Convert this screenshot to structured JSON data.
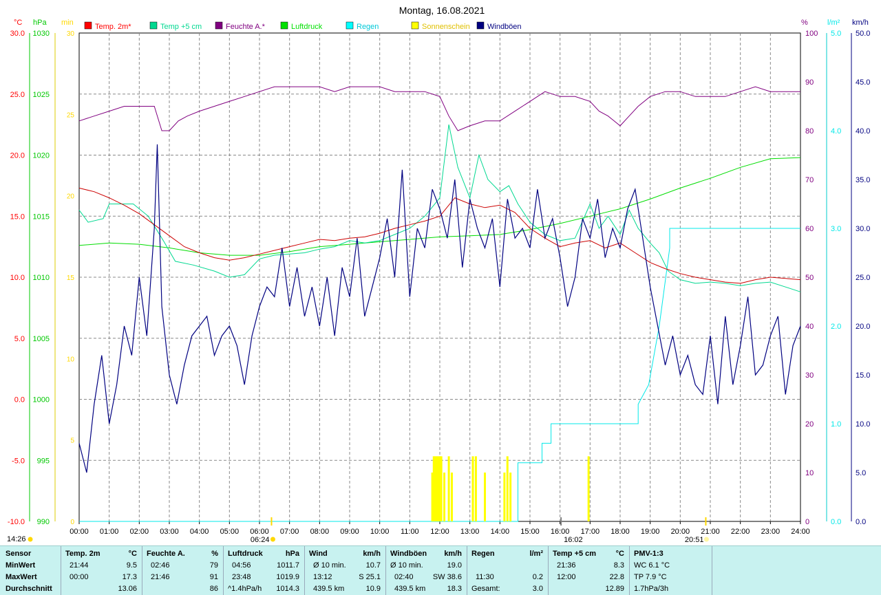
{
  "chart_data": {
    "type": "line",
    "title": "Montag, 16.08.2021",
    "x_ticks": [
      "00:00",
      "01:00",
      "02:00",
      "03:00",
      "04:00",
      "05:00",
      "06:00",
      "07:00",
      "08:00",
      "09:00",
      "10:00",
      "11:00",
      "12:00",
      "13:00",
      "14:00",
      "15:00",
      "16:00",
      "17:00",
      "18:00",
      "19:00",
      "20:00",
      "21:00",
      "22:00",
      "23:00",
      "24:00"
    ],
    "x_range_hours": [
      0,
      24
    ],
    "grid": "dashed",
    "legend_position": "top",
    "axes": {
      "temp_c": {
        "unit": "°C",
        "range": [
          -10,
          30
        ],
        "ticks": [
          "-10.0",
          "-5.0",
          "0.0",
          "5.0",
          "10.0",
          "15.0",
          "20.0",
          "25.0",
          "30.0"
        ],
        "color": "#ff0000"
      },
      "pressure_hpa": {
        "unit": "hPa",
        "range": [
          990,
          1030
        ],
        "ticks": [
          "990",
          "995",
          "1000",
          "1005",
          "1010",
          "1015",
          "1020",
          "1025",
          "1030"
        ],
        "color": "#00c800"
      },
      "sunshine_min": {
        "unit": "min",
        "range": [
          0,
          30
        ],
        "ticks": [
          "0",
          "5",
          "10",
          "15",
          "20",
          "25",
          "30"
        ],
        "color": "#ffd800"
      },
      "humidity_pct": {
        "unit": "%",
        "range": [
          0,
          100
        ],
        "ticks": [
          "0",
          "10",
          "20",
          "30",
          "40",
          "50",
          "60",
          "70",
          "80",
          "90",
          "100"
        ],
        "color": "#800080"
      },
      "rain_lm2": {
        "unit": "l/m²",
        "range": [
          0,
          5
        ],
        "ticks": [
          "0.0",
          "1.0",
          "2.0",
          "3.0",
          "4.0",
          "5.0"
        ],
        "color": "#00e8e8"
      },
      "wind_kmh": {
        "unit": "km/h",
        "range": [
          0,
          50
        ],
        "ticks": [
          "0.0",
          "5.0",
          "10.0",
          "15.0",
          "20.0",
          "25.0",
          "30.0",
          "35.0",
          "40.0",
          "45.0",
          "50.0"
        ],
        "color": "#000080"
      }
    },
    "series": [
      {
        "name": "Temp. 2m*",
        "color": "#cc0000",
        "axis": "temp_c",
        "x": [
          0,
          0.5,
          1,
          1.5,
          2,
          2.5,
          3,
          3.5,
          4,
          4.5,
          5,
          5.5,
          6,
          6.5,
          7,
          7.5,
          8,
          8.5,
          9,
          9.5,
          10,
          10.5,
          11,
          11.5,
          12,
          12.5,
          13,
          13.5,
          14,
          14.5,
          15,
          15.5,
          16,
          16.5,
          17,
          17.5,
          18,
          18.5,
          19,
          19.5,
          20,
          20.5,
          21,
          21.5,
          22,
          22.5,
          23,
          23.5,
          24
        ],
        "y": [
          17.3,
          17.0,
          16.5,
          15.9,
          15.2,
          14.3,
          13.4,
          12.5,
          12.0,
          11.6,
          11.4,
          11.6,
          11.9,
          12.2,
          12.5,
          12.8,
          13.1,
          13.0,
          13.2,
          13.3,
          13.6,
          14.0,
          14.3,
          14.6,
          15.0,
          16.5,
          16.0,
          15.7,
          15.9,
          15.3,
          14.0,
          13.2,
          12.5,
          12.8,
          13.0,
          12.4,
          12.8,
          12.0,
          11.2,
          10.7,
          10.3,
          10.0,
          9.8,
          9.6,
          9.5,
          9.8,
          10.0,
          9.9,
          9.8
        ]
      },
      {
        "name": "Temp +5 cm",
        "color": "#00d890",
        "axis": "temp_c",
        "x": [
          0,
          0.3,
          0.8,
          1,
          1.8,
          2.3,
          2.8,
          3.2,
          3.8,
          4.5,
          5,
          5.5,
          6,
          6.5,
          7,
          7.5,
          8,
          8.5,
          9,
          9.5,
          10,
          10.5,
          11,
          11.5,
          12,
          12.3,
          12.6,
          13,
          13.3,
          13.6,
          14,
          14.3,
          14.6,
          15,
          15.5,
          16,
          16.5,
          17,
          17.3,
          17.6,
          18,
          18.3,
          18.6,
          19,
          19.3,
          19.6,
          20,
          20.5,
          21,
          21.5,
          22,
          22.5,
          23,
          23.5,
          24
        ],
        "y": [
          15.5,
          14.5,
          14.8,
          16.0,
          16.0,
          15.0,
          13.0,
          11.3,
          11.0,
          10.5,
          10.0,
          10.2,
          11.5,
          11.8,
          11.9,
          12.0,
          12.3,
          12.5,
          13.0,
          12.8,
          13.0,
          13.5,
          14.0,
          15.0,
          16.5,
          22.5,
          19.0,
          16.5,
          20.0,
          18.0,
          17.0,
          17.5,
          16.0,
          14.5,
          13.5,
          13.0,
          13.2,
          16.0,
          14.0,
          15.0,
          13.5,
          15.5,
          14.0,
          12.8,
          12.0,
          10.5,
          9.8,
          9.5,
          9.6,
          9.5,
          9.3,
          9.5,
          9.6,
          9.2,
          8.8
        ]
      },
      {
        "name": "Feuchte A.*",
        "color": "#800080",
        "axis": "humidity_pct",
        "x": [
          0,
          0.5,
          1,
          1.5,
          2,
          2.5,
          2.75,
          3,
          3.3,
          3.6,
          4,
          4.5,
          5,
          5.5,
          6,
          6.5,
          7,
          7.5,
          8,
          8.5,
          9,
          9.5,
          10,
          10.5,
          11,
          11.5,
          12,
          12.3,
          12.6,
          13,
          13.5,
          14,
          14.5,
          15,
          15.5,
          16,
          16.5,
          17,
          17.3,
          17.6,
          18,
          18.3,
          18.6,
          19,
          19.5,
          20,
          20.5,
          21,
          21.5,
          22,
          22.5,
          23,
          23.5,
          24
        ],
        "y": [
          82,
          83,
          84,
          85,
          85,
          85,
          80,
          80,
          82,
          83,
          84,
          85,
          86,
          87,
          88,
          89,
          89,
          89,
          89,
          88,
          89,
          89,
          89,
          88,
          88,
          88,
          87,
          83,
          80,
          81,
          82,
          82,
          84,
          86,
          88,
          87,
          87,
          86,
          84,
          83,
          81,
          83,
          85,
          87,
          88,
          88,
          87,
          87,
          87,
          88,
          89,
          88,
          88,
          88
        ]
      },
      {
        "name": "Luftdruck",
        "color": "#00dd00",
        "axis": "pressure_hpa",
        "x": [
          0,
          1,
          2,
          3,
          4,
          5,
          6,
          7,
          8,
          9,
          10,
          11,
          12,
          13,
          14,
          15,
          16,
          17,
          18,
          19,
          20,
          21,
          22,
          23,
          24
        ],
        "y": [
          1012.6,
          1012.8,
          1012.7,
          1012.4,
          1012.0,
          1011.8,
          1011.8,
          1012.1,
          1012.5,
          1012.7,
          1012.9,
          1013.1,
          1013.3,
          1013.4,
          1013.5,
          1013.9,
          1014.4,
          1015.0,
          1015.6,
          1016.4,
          1017.3,
          1018.1,
          1019.0,
          1019.7,
          1019.8
        ]
      },
      {
        "name": "Regen",
        "color": "#00e8e8",
        "axis": "rain_lm2",
        "x": [
          0,
          14.6,
          14.6,
          15.4,
          15.4,
          15.7,
          15.7,
          16.3,
          16.3,
          18.6,
          18.6,
          18.95,
          19.3,
          19.65,
          19.65,
          20,
          21,
          22,
          23,
          24
        ],
        "y": [
          0,
          0,
          0.6,
          0.6,
          0.8,
          0.8,
          1.0,
          1.0,
          1.0,
          1.0,
          1.2,
          1.4,
          2.0,
          2.8,
          3.0,
          3.0,
          3.0,
          3.0,
          3.0,
          3.0
        ]
      },
      {
        "name": "Sonnenschein",
        "color": "#ffff00",
        "axis": "sunshine_min",
        "x": [
          11.75,
          11.8,
          11.85,
          11.9,
          11.95,
          12.0,
          12.05,
          12.15,
          12.3,
          12.4,
          13.1,
          13.2,
          13.5,
          14.15,
          14.25,
          14.35,
          16.95
        ],
        "y": [
          3,
          4,
          4,
          4,
          4,
          4,
          4,
          3,
          4,
          3,
          4,
          4,
          3,
          3,
          4,
          3,
          4
        ]
      },
      {
        "name": "Windböen",
        "color": "#000080",
        "axis": "wind_kmh",
        "x": [
          0,
          0.25,
          0.5,
          0.75,
          1,
          1.25,
          1.5,
          1.75,
          2,
          2.25,
          2.5,
          2.6,
          2.75,
          3,
          3.25,
          3.5,
          3.75,
          4,
          4.25,
          4.5,
          4.75,
          5,
          5.25,
          5.5,
          5.75,
          6,
          6.25,
          6.5,
          6.75,
          7,
          7.25,
          7.5,
          7.75,
          8,
          8.25,
          8.5,
          8.75,
          9,
          9.25,
          9.5,
          9.75,
          10,
          10.25,
          10.5,
          10.75,
          11,
          11.25,
          11.5,
          11.75,
          12,
          12.25,
          12.5,
          12.75,
          13,
          13.25,
          13.5,
          13.75,
          14,
          14.25,
          14.5,
          14.75,
          15,
          15.25,
          15.5,
          15.75,
          16,
          16.25,
          16.5,
          16.75,
          17,
          17.25,
          17.5,
          17.75,
          18,
          18.25,
          18.5,
          18.75,
          19,
          19.25,
          19.5,
          19.75,
          20,
          20.25,
          20.5,
          20.75,
          21,
          21.25,
          21.5,
          21.75,
          22,
          22.25,
          22.5,
          22.75,
          23,
          23.25,
          23.5,
          23.75,
          24
        ],
        "y": [
          8,
          5,
          12,
          17,
          10,
          14,
          20,
          17,
          25,
          19,
          30,
          38.6,
          22,
          15,
          12,
          16,
          19,
          20,
          21,
          17,
          19,
          20,
          18,
          14,
          19,
          22,
          24,
          23,
          28,
          22,
          26,
          21,
          24,
          20,
          25,
          19,
          26,
          23,
          29,
          21,
          24,
          27,
          31,
          25,
          36,
          23,
          30,
          28,
          34,
          32,
          29,
          35,
          26,
          33,
          30,
          28,
          31,
          24,
          33,
          29,
          30,
          28,
          34,
          29,
          31,
          27,
          22,
          25,
          31,
          29,
          33,
          27,
          30,
          28,
          32,
          34,
          29,
          24,
          20,
          16,
          19,
          15,
          17,
          14,
          13,
          19,
          12,
          21,
          14,
          18,
          23,
          15,
          16,
          19,
          21,
          13,
          18,
          20
        ]
      }
    ],
    "annotations": {
      "sunrise": "06:24",
      "noon": "16:02",
      "sunset": "20:51",
      "station_time": "14:26"
    }
  },
  "legend": [
    {
      "label": "Temp. 2m*",
      "color": "#ff0000"
    },
    {
      "label": "Temp +5 cm",
      "color": "#00d890"
    },
    {
      "label": "Feuchte A.*",
      "color": "#800080"
    },
    {
      "label": "Luftdruck",
      "color": "#00e000"
    },
    {
      "label": "Regen",
      "color": "#00ffff"
    },
    {
      "label": "Sonnenschein",
      "color": "#ffff00"
    },
    {
      "label": "Windböen",
      "color": "#000080"
    }
  ],
  "stats": {
    "row_labels": {
      "sensor": "Sensor",
      "min": "MinWert",
      "max": "MaxWert",
      "avg": "Durchschnitt"
    },
    "temp2m": {
      "title": "Temp. 2m",
      "unit": "°C",
      "min_time": "21:44",
      "min_val": "9.5",
      "max_time": "00:00",
      "max_val": "17.3",
      "avg": "13.06"
    },
    "humidity": {
      "title": "Feuchte A.",
      "unit": "%",
      "min_time": "02:46",
      "min_val": "79",
      "max_time": "21:46",
      "max_val": "91",
      "avg": "86"
    },
    "pressure": {
      "title": "Luftdruck",
      "unit": "hPa",
      "min_time": "04:56",
      "min_val": "1011.7",
      "max_time": "23:48",
      "max_val": "1019.9",
      "avg_label": "^1.4hPa/h",
      "avg": "1014.3"
    },
    "wind": {
      "title": "Wind",
      "unit": "km/h",
      "min_time": "Ø 10 min.",
      "min_val": "10.7",
      "max_time": "13:12",
      "max_val": "S 25.1",
      "avg_label": "439.5 km",
      "avg": "10.9"
    },
    "gusts": {
      "title": "Windböen",
      "unit": "km/h",
      "min_time": "Ø 10 min.",
      "min_val": "19.0",
      "max_time": "02:40",
      "max_val": "SW 38.6",
      "avg_label": "439.5 km",
      "avg": "18.3"
    },
    "rain": {
      "title": "Regen",
      "unit": "l/m²",
      "max_time": "11:30",
      "max_val": "0.2",
      "avg_label": "Gesamt:",
      "avg": "3.0"
    },
    "temp5cm": {
      "title": "Temp +5 cm",
      "unit": "°C",
      "min_time": "21:36",
      "min_val": "8.3",
      "max_time": "12:00",
      "max_val": "22.8",
      "avg": "12.89"
    },
    "pmv": {
      "title": "PMV-1:3",
      "line1": "WC 6.1 °C",
      "line2": "TP 7.9 °C",
      "line3": "1.7hPa/3h"
    }
  }
}
